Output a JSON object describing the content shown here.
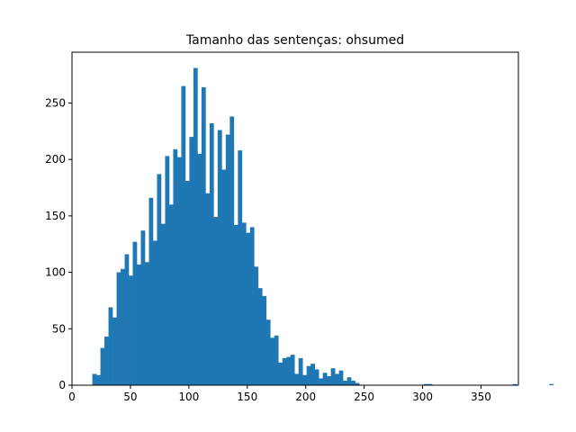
{
  "chart_data": {
    "type": "bar",
    "title": "Tamanho das sentenças: ohsumed",
    "xlabel": "",
    "ylabel": "",
    "xlim": [
      0,
      382
    ],
    "ylim": [
      0,
      295
    ],
    "xticks": [
      0,
      50,
      100,
      150,
      200,
      250,
      300,
      350
    ],
    "yticks": [
      0,
      50,
      100,
      150,
      200,
      250
    ],
    "grid": false,
    "bar_color": "#1f77b4",
    "bin_start": 17.4,
    "bin_width": 3.46,
    "values": [
      10,
      9,
      33,
      43,
      69,
      60,
      100,
      103,
      116,
      97,
      127,
      107,
      137,
      109,
      166,
      128,
      187,
      143,
      203,
      160,
      209,
      202,
      265,
      181,
      220,
      281,
      205,
      264,
      170,
      232,
      149,
      226,
      191,
      222,
      238,
      142,
      208,
      144,
      135,
      140,
      105,
      86,
      79,
      58,
      42,
      44,
      20,
      24,
      25,
      27,
      10,
      24,
      9,
      17,
      19,
      14,
      6,
      11,
      8,
      15,
      10,
      13,
      4,
      7,
      4,
      2,
      0,
      0,
      0,
      0,
      0,
      0,
      0,
      0,
      0,
      0,
      0,
      0,
      0,
      0,
      0,
      0,
      1,
      1,
      0,
      0,
      0,
      0,
      0,
      0,
      0,
      0,
      0,
      0,
      0,
      0,
      0,
      0,
      0,
      0,
      0,
      0,
      0,
      0,
      1,
      0,
      0,
      0,
      0,
      0,
      0,
      0,
      0,
      1
    ]
  }
}
